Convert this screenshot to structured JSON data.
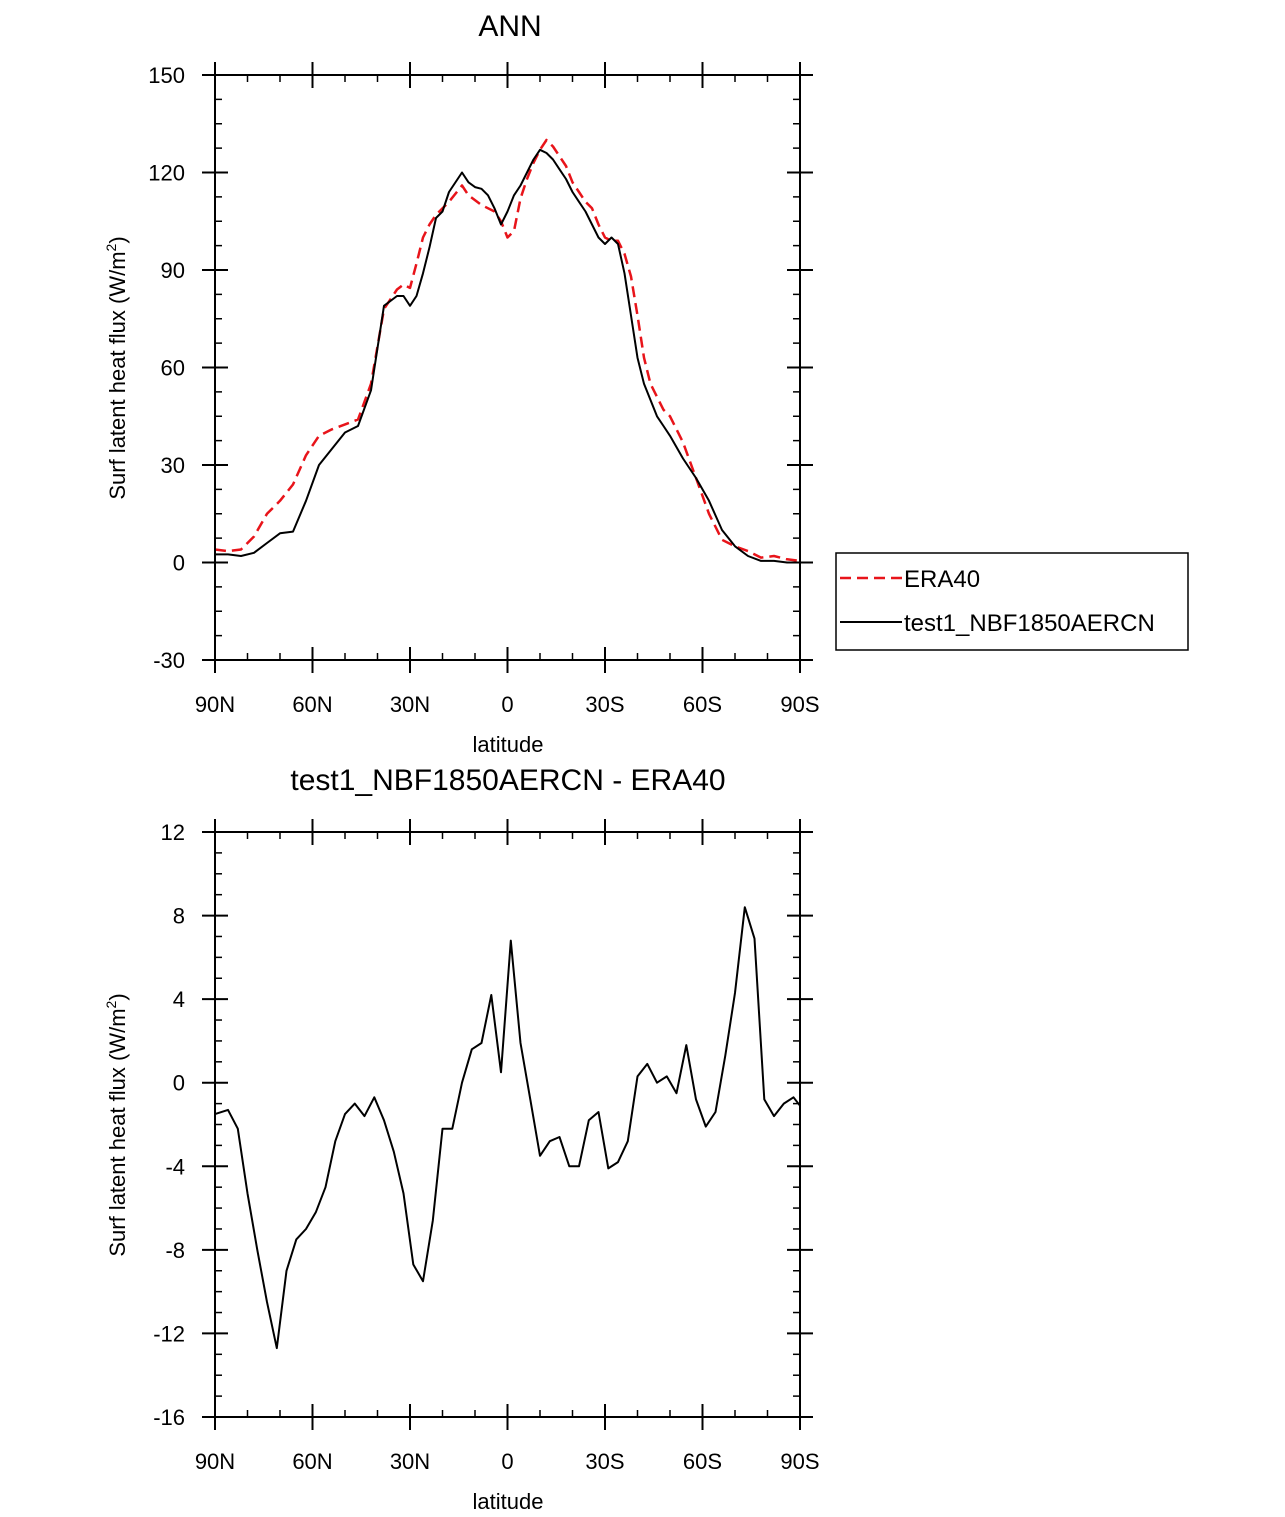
{
  "chart_data": [
    {
      "type": "line",
      "title": "ANN",
      "xlabel": "latitude",
      "ylabel": "Surf latent heat flux (W/m",
      "ylabel_sup": "2",
      "ylabel_close": ")",
      "xlim": [
        90,
        -90
      ],
      "ylim": [
        -30,
        150
      ],
      "yticks": [
        -30,
        0,
        30,
        60,
        90,
        120,
        150
      ],
      "xticks": [
        90,
        60,
        30,
        0,
        -30,
        -60,
        -90
      ],
      "xtick_labels": [
        "90N",
        "60N",
        "30N",
        "0",
        "30S",
        "60S",
        "90S"
      ],
      "legend": {
        "placement": "right",
        "entries": [
          "ERA40",
          "test1_NBF1850AERCN"
        ]
      },
      "series": [
        {
          "name": "ERA40",
          "color": "#e8141a",
          "dash": true,
          "x": [
            90,
            86,
            82,
            78,
            74,
            70,
            66,
            62,
            58,
            54,
            50,
            46,
            42,
            38,
            34,
            32,
            30,
            28,
            26,
            24,
            22,
            18,
            14,
            12,
            8,
            4,
            2,
            0,
            -2,
            -4,
            -6,
            -8,
            -10,
            -12,
            -14,
            -16,
            -18,
            -20,
            -22,
            -24,
            -26,
            -28,
            -30,
            -32,
            -34,
            -36,
            -38,
            -40,
            -42,
            -44,
            -46,
            -48,
            -50,
            -54,
            -58,
            -62,
            -66,
            -70,
            -74,
            -78,
            -82,
            -86,
            -90
          ],
          "y": [
            4,
            3.5,
            4,
            8,
            15,
            19,
            24,
            33,
            39,
            41,
            42.5,
            44,
            55,
            78,
            84,
            85.5,
            84.5,
            92,
            100,
            104,
            107,
            111,
            116,
            113,
            110,
            108,
            105,
            100,
            102,
            112,
            118,
            123,
            127,
            130,
            128,
            125,
            122,
            117,
            114,
            111,
            109,
            104,
            100,
            99,
            99,
            95,
            88,
            76,
            63,
            55,
            51,
            47,
            45,
            37,
            26,
            15,
            7,
            5,
            3.5,
            1.5,
            2,
            1,
            0.5
          ]
        },
        {
          "name": "test1_NBF1850AERCN",
          "color": "#000000",
          "dash": false,
          "x": [
            90,
            86,
            82,
            78,
            74,
            70,
            66,
            62,
            58,
            54,
            50,
            46,
            42,
            38,
            34,
            32,
            30,
            28,
            26,
            24,
            22,
            20,
            18,
            14,
            12,
            10,
            8,
            6,
            4,
            2,
            0,
            -2,
            -4,
            -6,
            -8,
            -10,
            -12,
            -14,
            -16,
            -18,
            -20,
            -22,
            -24,
            -26,
            -28,
            -30,
            -32,
            -34,
            -36,
            -38,
            -40,
            -42,
            -44,
            -46,
            -48,
            -50,
            -54,
            -58,
            -62,
            -66,
            -70,
            -74,
            -78,
            -82,
            -86,
            -90
          ],
          "y": [
            2.5,
            2.5,
            2,
            3,
            6,
            9,
            9.5,
            19,
            30,
            35,
            40,
            42,
            53,
            79,
            82,
            82,
            79,
            82,
            89,
            97,
            106,
            108,
            114,
            120,
            117,
            115.5,
            115,
            113,
            109,
            104,
            108,
            113,
            116,
            120,
            124,
            127,
            126,
            124,
            121,
            118,
            114,
            111,
            108,
            104,
            100,
            98,
            100,
            98,
            89,
            76,
            63,
            55,
            50,
            45,
            42,
            39,
            32,
            26,
            19,
            10,
            5,
            2,
            0.5,
            0.5,
            0,
            0
          ]
        }
      ]
    },
    {
      "type": "line",
      "title": "test1_NBF1850AERCN - ERA40",
      "xlabel": "latitude",
      "ylabel": "Surf latent heat flux (W/m",
      "ylabel_sup": "2",
      "ylabel_close": ")",
      "xlim": [
        90,
        -90
      ],
      "ylim": [
        -16,
        12
      ],
      "yticks": [
        -16,
        -12,
        -8,
        -4,
        0,
        4,
        8,
        12
      ],
      "xticks": [
        90,
        60,
        30,
        0,
        -30,
        -60,
        -90
      ],
      "xtick_labels": [
        "90N",
        "60N",
        "30N",
        "0",
        "30S",
        "60S",
        "90S"
      ],
      "series": [
        {
          "name": "test1_NBF1850AERCN - ERA40",
          "color": "#000000",
          "dash": false,
          "x": [
            90,
            86,
            83,
            80,
            77,
            74,
            71,
            68,
            65,
            62,
            59,
            56,
            53,
            50,
            47,
            44,
            41,
            38,
            35,
            32,
            29,
            26,
            23,
            20,
            17,
            14,
            11,
            8,
            5,
            2,
            -1,
            -4,
            -7,
            -10,
            -13,
            -16,
            -19,
            -22,
            -25,
            -28,
            -31,
            -34,
            -37,
            -40,
            -43,
            -46,
            -49,
            -52,
            -55,
            -58,
            -61,
            -64,
            -67,
            -70,
            -73,
            -76,
            -79,
            -82,
            -85,
            -88,
            -90
          ],
          "y": [
            -1.5,
            -1.3,
            -2.2,
            -5.3,
            -8.0,
            -10.5,
            -12.7,
            -9.0,
            -7.5,
            -7.0,
            -6.2,
            -5.0,
            -2.8,
            -1.5,
            -1.0,
            -1.6,
            -0.7,
            -1.8,
            -3.3,
            -5.3,
            -8.7,
            -9.5,
            -6.6,
            -2.2,
            -2.2,
            0,
            1.6,
            1.9,
            4.2,
            0.5,
            6.8,
            1.9,
            -0.8,
            -3.5,
            -2.8,
            -2.6,
            -4.0,
            -4.0,
            -1.8,
            -1.4,
            -4.1,
            -3.8,
            -2.8,
            0.3,
            0.9,
            0.0,
            0.3,
            -0.5,
            1.8,
            -0.8,
            -2.1,
            -1.4,
            1.3,
            4.3,
            8.4,
            6.9,
            -0.8,
            -1.6,
            -1.0,
            -0.7,
            -1.1
          ]
        }
      ]
    }
  ]
}
